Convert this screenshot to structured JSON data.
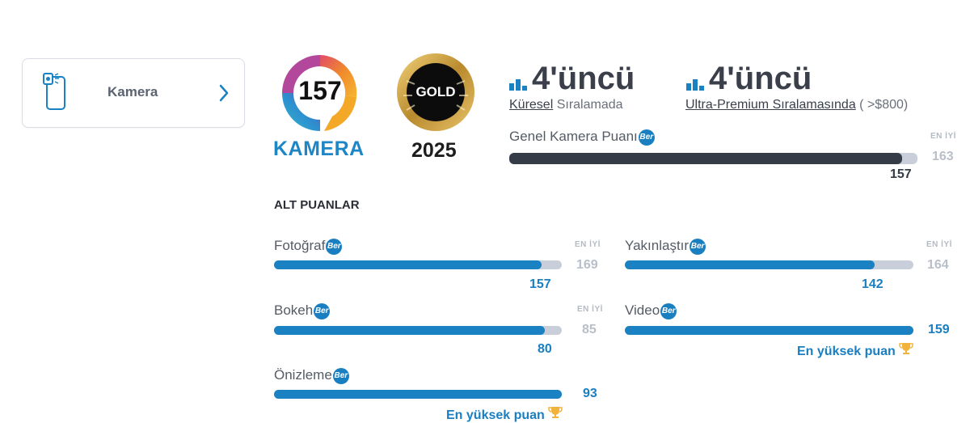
{
  "sidebar": {
    "item_label": "Kamera",
    "icon": "phone-camera-icon",
    "chevron_icon": "chevron-right-icon"
  },
  "badges": {
    "camera_score": "157",
    "camera_word": "KAMERA",
    "award_label": "GOLD",
    "award_year": "2025"
  },
  "ranking": {
    "global": {
      "rank": "4'üncü",
      "link": "Küresel",
      "suffix": " Sıralamada"
    },
    "segment": {
      "rank": "4'üncü",
      "link": "Ultra-Premium Sıralamasında",
      "suffix": " ( >$800)"
    }
  },
  "overall": {
    "label": "Genel Kamera Puanı",
    "en_iyi": "EN İYİ",
    "best": "163",
    "score": "157",
    "fill": 0.963
  },
  "subscores": {
    "title": "ALT PUANLAR",
    "info_badge": "Ber",
    "en_iyi": "EN İYİ",
    "top_label": "En yüksek puan",
    "items": [
      {
        "label": "Fotoğraf",
        "score": "157",
        "best": "169",
        "fill": 0.929
      },
      {
        "label": "Yakınlaştır",
        "score": "142",
        "best": "164",
        "fill": 0.866
      },
      {
        "label": "Bokeh",
        "score": "80",
        "best": "85",
        "fill": 0.941
      },
      {
        "label": "Video",
        "score": "159",
        "fill": 1.0
      },
      {
        "label": "Önizleme",
        "score": "93",
        "fill": 1.0
      }
    ]
  },
  "colors": {
    "accent": "#1a81c3",
    "dark_bar": "#353c47",
    "track": "#c9cfda",
    "gold": "#c99a3a"
  }
}
